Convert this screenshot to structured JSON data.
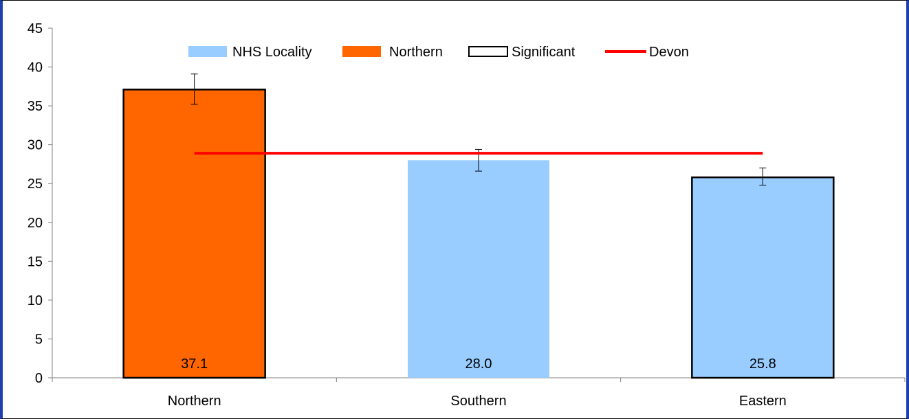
{
  "chart_data": {
    "type": "bar",
    "categories": [
      "Northern",
      "Southern",
      "Eastern"
    ],
    "values": [
      37.1,
      28.0,
      25.8
    ],
    "data_labels": [
      "37.1",
      "28.0",
      "25.8"
    ],
    "error_bars": [
      {
        "low": 35.2,
        "high": 39.1
      },
      {
        "low": 26.6,
        "high": 29.4
      },
      {
        "low": 24.8,
        "high": 27.0
      }
    ],
    "bar_styles": [
      {
        "fill": "#ff6600",
        "significant": true
      },
      {
        "fill": "#99ccff",
        "significant": false
      },
      {
        "fill": "#99ccff",
        "significant": true
      }
    ],
    "reference_line": {
      "name": "Devon",
      "value": 28.9,
      "color": "#ff0000"
    },
    "ylim": [
      0,
      45
    ],
    "y_ticks": [
      0,
      5,
      10,
      15,
      20,
      25,
      30,
      35,
      40,
      45
    ],
    "title": "",
    "xlabel": "",
    "ylabel": "",
    "grid": false,
    "legend": {
      "placement": "top-center",
      "items": [
        {
          "label": "NHS Locality",
          "swatch": "fill",
          "color": "#99ccff"
        },
        {
          "label": "Northern",
          "swatch": "fill",
          "color": "#ff6600"
        },
        {
          "label": "Significant",
          "swatch": "outline",
          "color": "#000000"
        },
        {
          "label": "Devon",
          "swatch": "line",
          "color": "#ff0000"
        }
      ]
    }
  }
}
